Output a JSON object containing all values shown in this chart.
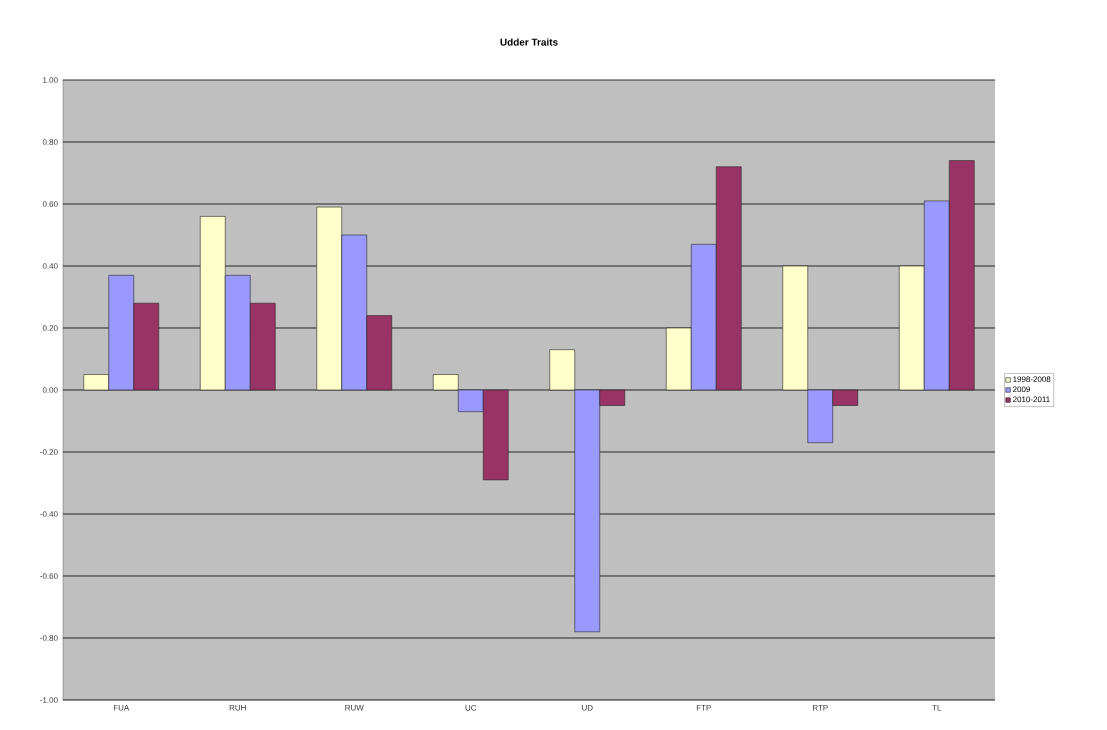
{
  "chart_data": {
    "type": "bar",
    "title": "Udder Traits",
    "categories": [
      "FUA",
      "RUH",
      "RUW",
      "UC",
      "UD",
      "FTP",
      "RTP",
      "TL"
    ],
    "series": [
      {
        "name": "1998-2008",
        "color": "#ffffcc",
        "values": [
          0.05,
          0.56,
          0.59,
          0.05,
          0.13,
          0.2,
          0.4,
          0.4
        ]
      },
      {
        "name": "2009",
        "color": "#9999ff",
        "values": [
          0.37,
          0.37,
          0.5,
          -0.07,
          -0.78,
          0.47,
          -0.17,
          0.61
        ]
      },
      {
        "name": "2010-2011",
        "color": "#993366",
        "values": [
          0.28,
          0.28,
          0.24,
          -0.29,
          -0.05,
          0.72,
          -0.05,
          0.74
        ]
      }
    ],
    "ylim": [
      -1,
      1
    ],
    "yticks": [
      {
        "value": -1,
        "label": "-1.00"
      },
      {
        "value": -0.8,
        "label": "-0.80"
      },
      {
        "value": -0.6,
        "label": "-0.60"
      },
      {
        "value": -0.4,
        "label": "-0.40"
      },
      {
        "value": -0.2,
        "label": "-0.20"
      },
      {
        "value": 0,
        "label": "0.00"
      },
      {
        "value": 0.2,
        "label": "0.20"
      },
      {
        "value": 0.4,
        "label": "0.40"
      },
      {
        "value": 0.6,
        "label": "0.60"
      },
      {
        "value": 0.8,
        "label": "0.80"
      },
      {
        "value": 1,
        "label": "1.00"
      }
    ],
    "grid": "y",
    "legend": "right"
  }
}
